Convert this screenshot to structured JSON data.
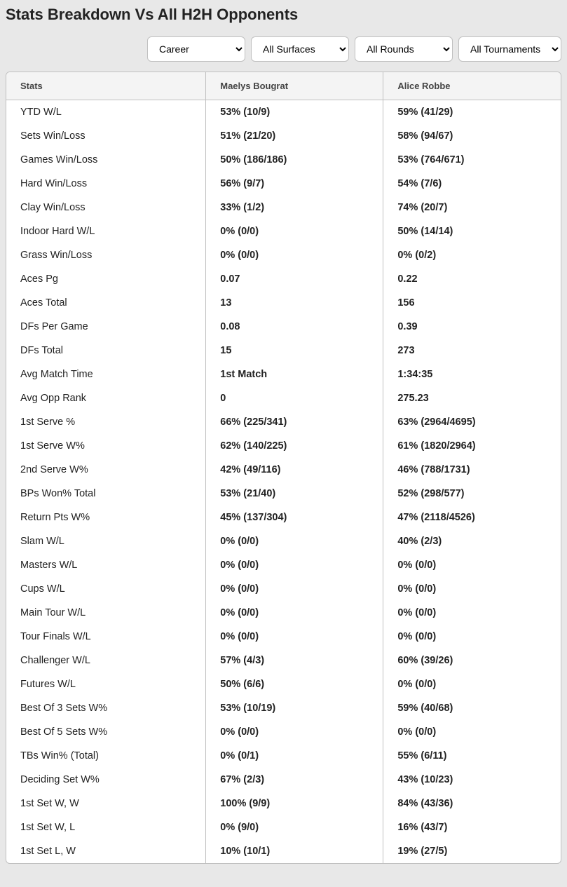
{
  "title": "Stats Breakdown Vs All H2H Opponents",
  "filters": {
    "timePeriod": "Career",
    "surface": "All Surfaces",
    "round": "All Rounds",
    "tournament": "All Tournaments"
  },
  "table": {
    "headers": {
      "stats": "Stats",
      "player1": "Maelys Bougrat",
      "player2": "Alice Robbe"
    },
    "rows": [
      {
        "stat": "YTD W/L",
        "p1": "53% (10/9)",
        "p2": "59% (41/29)"
      },
      {
        "stat": "Sets Win/Loss",
        "p1": "51% (21/20)",
        "p2": "58% (94/67)"
      },
      {
        "stat": "Games Win/Loss",
        "p1": "50% (186/186)",
        "p2": "53% (764/671)"
      },
      {
        "stat": "Hard Win/Loss",
        "p1": "56% (9/7)",
        "p2": "54% (7/6)"
      },
      {
        "stat": "Clay Win/Loss",
        "p1": "33% (1/2)",
        "p2": "74% (20/7)"
      },
      {
        "stat": "Indoor Hard W/L",
        "p1": "0% (0/0)",
        "p2": "50% (14/14)"
      },
      {
        "stat": "Grass Win/Loss",
        "p1": "0% (0/0)",
        "p2": "0% (0/2)"
      },
      {
        "stat": "Aces Pg",
        "p1": "0.07",
        "p2": "0.22"
      },
      {
        "stat": "Aces Total",
        "p1": "13",
        "p2": "156"
      },
      {
        "stat": "DFs Per Game",
        "p1": "0.08",
        "p2": "0.39"
      },
      {
        "stat": "DFs Total",
        "p1": "15",
        "p2": "273"
      },
      {
        "stat": "Avg Match Time",
        "p1": "1st Match",
        "p2": "1:34:35"
      },
      {
        "stat": "Avg Opp Rank",
        "p1": "0",
        "p2": "275.23"
      },
      {
        "stat": "1st Serve %",
        "p1": "66% (225/341)",
        "p2": "63% (2964/4695)"
      },
      {
        "stat": "1st Serve W%",
        "p1": "62% (140/225)",
        "p2": "61% (1820/2964)"
      },
      {
        "stat": "2nd Serve W%",
        "p1": "42% (49/116)",
        "p2": "46% (788/1731)"
      },
      {
        "stat": "BPs Won% Total",
        "p1": "53% (21/40)",
        "p2": "52% (298/577)"
      },
      {
        "stat": "Return Pts W%",
        "p1": "45% (137/304)",
        "p2": "47% (2118/4526)"
      },
      {
        "stat": "Slam W/L",
        "p1": "0% (0/0)",
        "p2": "40% (2/3)"
      },
      {
        "stat": "Masters W/L",
        "p1": "0% (0/0)",
        "p2": "0% (0/0)"
      },
      {
        "stat": "Cups W/L",
        "p1": "0% (0/0)",
        "p2": "0% (0/0)"
      },
      {
        "stat": "Main Tour W/L",
        "p1": "0% (0/0)",
        "p2": "0% (0/0)"
      },
      {
        "stat": "Tour Finals W/L",
        "p1": "0% (0/0)",
        "p2": "0% (0/0)"
      },
      {
        "stat": "Challenger W/L",
        "p1": "57% (4/3)",
        "p2": "60% (39/26)"
      },
      {
        "stat": "Futures W/L",
        "p1": "50% (6/6)",
        "p2": "0% (0/0)"
      },
      {
        "stat": "Best Of 3 Sets W%",
        "p1": "53% (10/19)",
        "p2": "59% (40/68)"
      },
      {
        "stat": "Best Of 5 Sets W%",
        "p1": "0% (0/0)",
        "p2": "0% (0/0)"
      },
      {
        "stat": "TBs Win% (Total)",
        "p1": "0% (0/1)",
        "p2": "55% (6/11)"
      },
      {
        "stat": "Deciding Set W%",
        "p1": "67% (2/3)",
        "p2": "43% (10/23)"
      },
      {
        "stat": "1st Set W, W",
        "p1": "100% (9/9)",
        "p2": "84% (43/36)"
      },
      {
        "stat": "1st Set W, L",
        "p1": "0% (9/0)",
        "p2": "16% (43/7)"
      },
      {
        "stat": "1st Set L, W",
        "p1": "10% (10/1)",
        "p2": "19% (27/5)"
      }
    ]
  }
}
